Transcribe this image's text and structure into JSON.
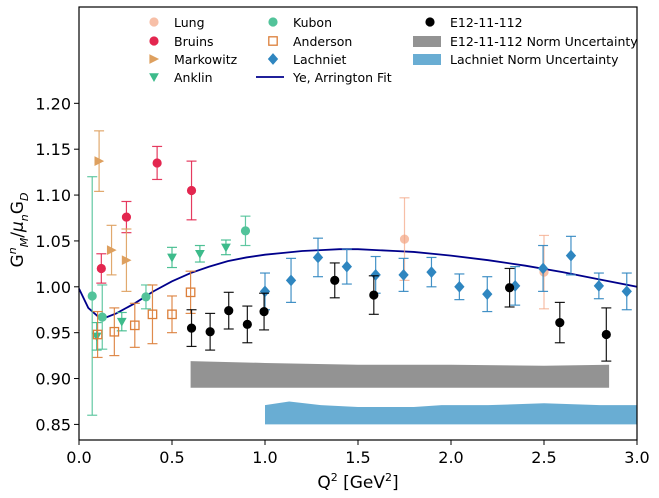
{
  "chart_data": {
    "type": "scatter",
    "title": "",
    "xlabel": "Q² [GeV²]",
    "ylabel": "G_M^n/μ_nG_D",
    "xlim": [
      0.0,
      3.0
    ],
    "ylim": [
      0.833,
      1.305
    ],
    "xticks": [
      "0.0",
      "0.5",
      "1.0",
      "1.5",
      "2.0",
      "2.5",
      "3.0"
    ],
    "xtick_values": [
      0.0,
      0.5,
      1.0,
      1.5,
      2.0,
      2.5,
      3.0
    ],
    "yticks": [
      "0.85",
      "0.90",
      "0.95",
      "1.00",
      "1.05",
      "1.10",
      "1.15",
      "1.20"
    ],
    "ytick_values": [
      0.85,
      0.9,
      0.95,
      1.0,
      1.05,
      1.1,
      1.15,
      1.2
    ],
    "grid": false,
    "legend_position": "top",
    "series": [
      {
        "name": "Lung",
        "marker": "circle",
        "style": "filled",
        "color": "#f4a582",
        "alpha": 0.7,
        "points": [
          {
            "x": 1.75,
            "y": 1.052,
            "err": 0.045
          },
          {
            "x": 2.5,
            "y": 1.016,
            "err": 0.04
          }
        ]
      },
      {
        "name": "Bruins",
        "marker": "circle",
        "style": "filled",
        "color": "#e3264f",
        "points": [
          {
            "x": 0.12,
            "y": 1.02,
            "err": 0.016
          },
          {
            "x": 0.255,
            "y": 1.076,
            "err": 0.017
          },
          {
            "x": 0.42,
            "y": 1.135,
            "err": 0.018
          },
          {
            "x": 0.605,
            "y": 1.105,
            "err": 0.032
          }
        ]
      },
      {
        "name": "Markowitz",
        "marker": "triangle-right",
        "style": "filled",
        "color": "#dea05f",
        "points": [
          {
            "x": 0.108,
            "y": 1.137,
            "err": 0.033
          },
          {
            "x": 0.175,
            "y": 1.04,
            "err": 0.027
          },
          {
            "x": 0.255,
            "y": 1.029,
            "err": 0.034
          }
        ]
      },
      {
        "name": "Anklin",
        "marker": "triangle-down",
        "style": "filled",
        "color": "#3dbb8b",
        "points": [
          {
            "x": 0.095,
            "y": 0.946,
            "err": 0.015
          },
          {
            "x": 0.23,
            "y": 0.962,
            "err": 0.01
          },
          {
            "x": 0.5,
            "y": 1.032,
            "err": 0.011
          },
          {
            "x": 0.65,
            "y": 1.036,
            "err": 0.009
          },
          {
            "x": 0.79,
            "y": 1.043,
            "err": 0.008
          }
        ]
      },
      {
        "name": "Kubon",
        "marker": "circle",
        "style": "filled",
        "color": "#52c39a",
        "points": [
          {
            "x": 0.071,
            "y": 0.99,
            "err": 0.13
          },
          {
            "x": 0.125,
            "y": 0.967,
            "err": 0.035
          },
          {
            "x": 0.36,
            "y": 0.989,
            "err": 0.013
          },
          {
            "x": 0.895,
            "y": 1.061,
            "err": 0.016
          }
        ]
      },
      {
        "name": "Anderson",
        "marker": "square",
        "style": "open",
        "color": "#dc7f3a",
        "points": [
          {
            "x": 0.1,
            "y": 0.948,
            "err": 0.025
          },
          {
            "x": 0.19,
            "y": 0.951,
            "err": 0.026
          },
          {
            "x": 0.3,
            "y": 0.958,
            "err": 0.024
          },
          {
            "x": 0.395,
            "y": 0.97,
            "err": 0.032
          },
          {
            "x": 0.5,
            "y": 0.97,
            "err": 0.02
          },
          {
            "x": 0.6,
            "y": 0.994,
            "err": 0.023
          }
        ]
      },
      {
        "name": "Lachniet",
        "marker": "diamond",
        "style": "filled",
        "color": "#2f86c0",
        "points": [
          {
            "x": 1.0,
            "y": 0.995,
            "err": 0.02
          },
          {
            "x": 1.14,
            "y": 1.007,
            "err": 0.024
          },
          {
            "x": 1.285,
            "y": 1.032,
            "err": 0.021
          },
          {
            "x": 1.44,
            "y": 1.022,
            "err": 0.019
          },
          {
            "x": 1.595,
            "y": 1.013,
            "err": 0.02
          },
          {
            "x": 1.745,
            "y": 1.013,
            "err": 0.018
          },
          {
            "x": 1.895,
            "y": 1.016,
            "err": 0.016
          },
          {
            "x": 2.045,
            "y": 1.0,
            "err": 0.014
          },
          {
            "x": 2.195,
            "y": 0.992,
            "err": 0.019
          },
          {
            "x": 2.345,
            "y": 1.001,
            "err": 0.021
          },
          {
            "x": 2.495,
            "y": 1.02,
            "err": 0.025
          },
          {
            "x": 2.645,
            "y": 1.034,
            "err": 0.021
          },
          {
            "x": 2.795,
            "y": 1.001,
            "err": 0.014
          },
          {
            "x": 2.945,
            "y": 0.995,
            "err": 0.02
          }
        ]
      },
      {
        "name": "E12-11-112",
        "marker": "circle",
        "style": "filled",
        "color": "#000000",
        "points": [
          {
            "x": 0.605,
            "y": 0.955,
            "err": 0.02
          },
          {
            "x": 0.705,
            "y": 0.951,
            "err": 0.02
          },
          {
            "x": 0.805,
            "y": 0.974,
            "err": 0.02
          },
          {
            "x": 0.905,
            "y": 0.959,
            "err": 0.02
          },
          {
            "x": 0.995,
            "y": 0.973,
            "err": 0.02
          },
          {
            "x": 1.375,
            "y": 1.007,
            "err": 0.019
          },
          {
            "x": 1.585,
            "y": 0.991,
            "err": 0.021
          },
          {
            "x": 2.315,
            "y": 0.999,
            "err": 0.021
          },
          {
            "x": 2.585,
            "y": 0.961,
            "err": 0.022
          },
          {
            "x": 2.835,
            "y": 0.948,
            "err": 0.029
          }
        ]
      }
    ],
    "fit": {
      "name": "Ye, Arrington Fit",
      "color": "#00008b",
      "x": [
        0.0,
        0.05,
        0.1,
        0.15,
        0.2,
        0.3,
        0.4,
        0.5,
        0.6,
        0.7,
        0.8,
        0.9,
        1.0,
        1.1,
        1.2,
        1.3,
        1.4,
        1.5,
        1.6,
        1.7,
        1.8,
        1.9,
        2.0,
        2.2,
        2.4,
        2.6,
        2.8,
        3.0
      ],
      "y": [
        0.998,
        0.977,
        0.968,
        0.967,
        0.971,
        0.982,
        0.995,
        1.006,
        1.015,
        1.022,
        1.028,
        1.032,
        1.035,
        1.037,
        1.039,
        1.04,
        1.041,
        1.041,
        1.04,
        1.039,
        1.038,
        1.036,
        1.034,
        1.029,
        1.023,
        1.016,
        1.008,
        1.0
      ]
    },
    "bands": [
      {
        "name": "E12-11-112 Norm Uncertainty",
        "color": "#808080",
        "x": [
          0.6,
          1.0,
          1.5,
          2.0,
          2.5,
          2.85
        ],
        "y_low": [
          0.89,
          0.89,
          0.89,
          0.89,
          0.89,
          0.89
        ],
        "y_high": [
          0.919,
          0.917,
          0.915,
          0.915,
          0.914,
          0.915
        ]
      },
      {
        "name": "Lachniet Norm Uncertainty",
        "color": "#4f9fcb",
        "x": [
          1.0,
          1.13,
          1.3,
          1.5,
          1.8,
          1.95,
          2.2,
          2.5,
          2.8,
          3.0
        ],
        "y_low": [
          0.85,
          0.85,
          0.85,
          0.85,
          0.85,
          0.85,
          0.85,
          0.85,
          0.85,
          0.85
        ],
        "y_high": [
          0.871,
          0.875,
          0.871,
          0.869,
          0.869,
          0.871,
          0.871,
          0.873,
          0.871,
          0.871
        ]
      }
    ],
    "legend": [
      "Lung",
      "Bruins",
      "Markowitz",
      "Anklin",
      "Kubon",
      "Anderson",
      "Lachniet",
      "Ye, Arrington Fit",
      "E12-11-112",
      "E12-11-112 Norm Uncertainty",
      "Lachniet Norm Uncertainty"
    ]
  }
}
